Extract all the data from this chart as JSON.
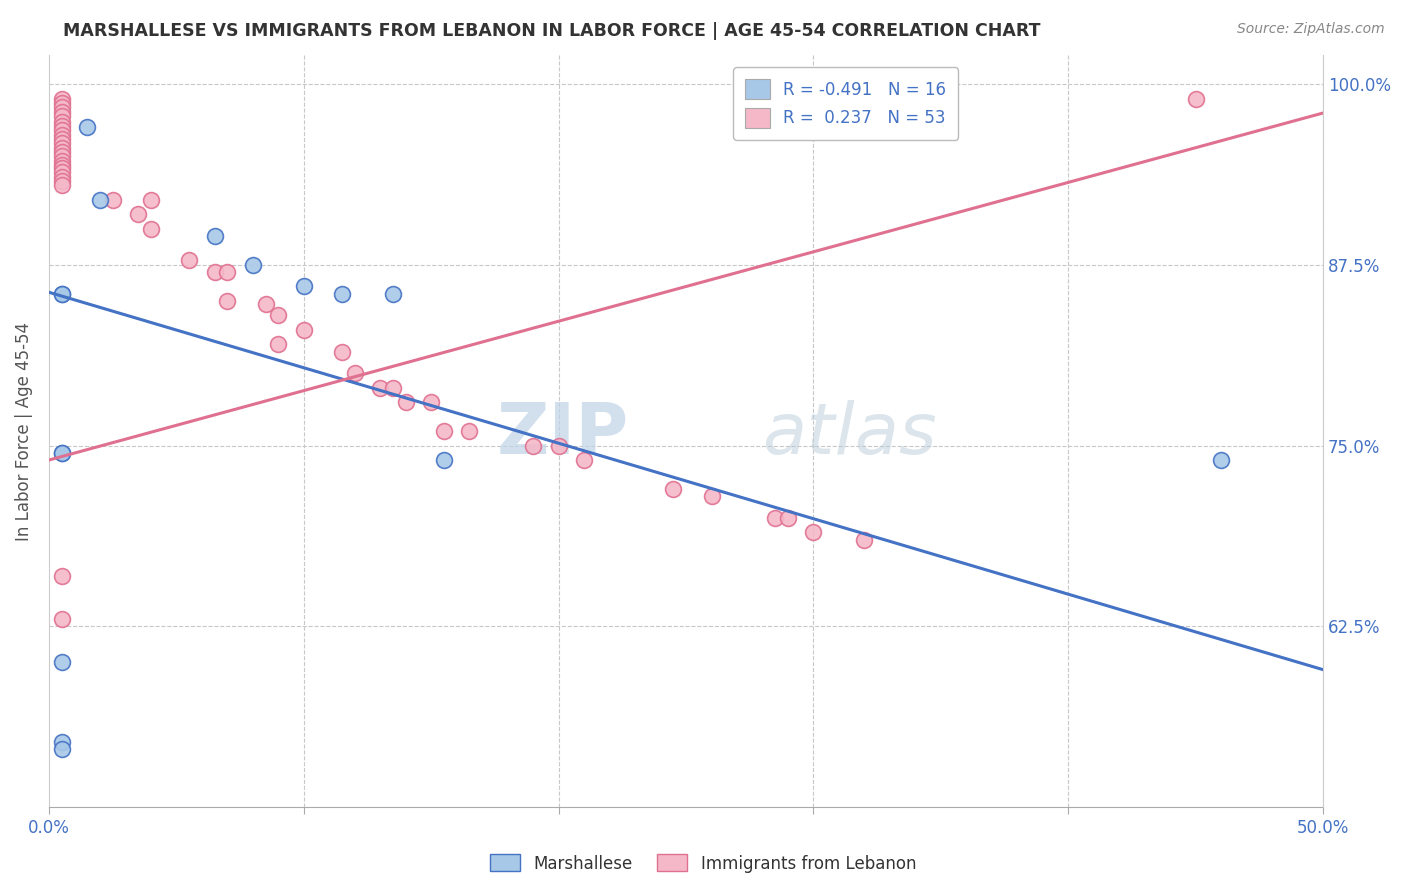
{
  "title": "MARSHALLESE VS IMMIGRANTS FROM LEBANON IN LABOR FORCE | AGE 45-54 CORRELATION CHART",
  "source": "Source: ZipAtlas.com",
  "ylabel": "In Labor Force | Age 45-54",
  "x_min": 0.0,
  "x_max": 0.5,
  "y_min": 0.5,
  "y_max": 1.02,
  "marshallese_color": "#a8c8e8",
  "lebanon_color": "#f4b8c8",
  "marshallese_line_color": "#4472c4",
  "lebanon_line_color": "#e07090",
  "legend_R_marshallese": "-0.491",
  "legend_N_marshallese": "16",
  "legend_R_lebanon": "0.237",
  "legend_N_lebanon": "53",
  "grid_color": "#c8c8c8",
  "watermark_zip": "ZIP",
  "watermark_atlas": "atlas",
  "marsh_line_x": [
    0.0,
    0.5
  ],
  "marsh_line_y": [
    0.856,
    0.595
  ],
  "leb_line_x": [
    0.0,
    0.5
  ],
  "leb_line_y": [
    0.74,
    0.98
  ],
  "marshallese_x": [
    0.015,
    0.02,
    0.065,
    0.08,
    0.1,
    0.115,
    0.135,
    0.155,
    0.005,
    0.005,
    0.46,
    0.005,
    0.005,
    0.005,
    0.005,
    0.005
  ],
  "marshallese_y": [
    0.97,
    0.92,
    0.895,
    0.875,
    0.86,
    0.855,
    0.855,
    0.74,
    0.855,
    0.855,
    0.74,
    0.6,
    0.545,
    0.54,
    0.745,
    0.745
  ],
  "lebanon_x": [
    0.005,
    0.005,
    0.005,
    0.005,
    0.005,
    0.005,
    0.005,
    0.005,
    0.005,
    0.005,
    0.005,
    0.005,
    0.005,
    0.005,
    0.005,
    0.005,
    0.005,
    0.005,
    0.005,
    0.005,
    0.005,
    0.025,
    0.035,
    0.04,
    0.04,
    0.055,
    0.065,
    0.07,
    0.07,
    0.085,
    0.09,
    0.09,
    0.1,
    0.115,
    0.12,
    0.13,
    0.135,
    0.14,
    0.15,
    0.155,
    0.165,
    0.19,
    0.2,
    0.21,
    0.245,
    0.26,
    0.285,
    0.29,
    0.3,
    0.32,
    0.45,
    0.005,
    0.005
  ],
  "lebanon_y": [
    0.99,
    0.987,
    0.984,
    0.981,
    0.978,
    0.974,
    0.971,
    0.968,
    0.965,
    0.962,
    0.959,
    0.956,
    0.953,
    0.95,
    0.947,
    0.944,
    0.942,
    0.939,
    0.936,
    0.933,
    0.93,
    0.92,
    0.91,
    0.92,
    0.9,
    0.878,
    0.87,
    0.87,
    0.85,
    0.848,
    0.84,
    0.82,
    0.83,
    0.815,
    0.8,
    0.79,
    0.79,
    0.78,
    0.78,
    0.76,
    0.76,
    0.75,
    0.75,
    0.74,
    0.72,
    0.715,
    0.7,
    0.7,
    0.69,
    0.685,
    0.99,
    0.66,
    0.63
  ]
}
